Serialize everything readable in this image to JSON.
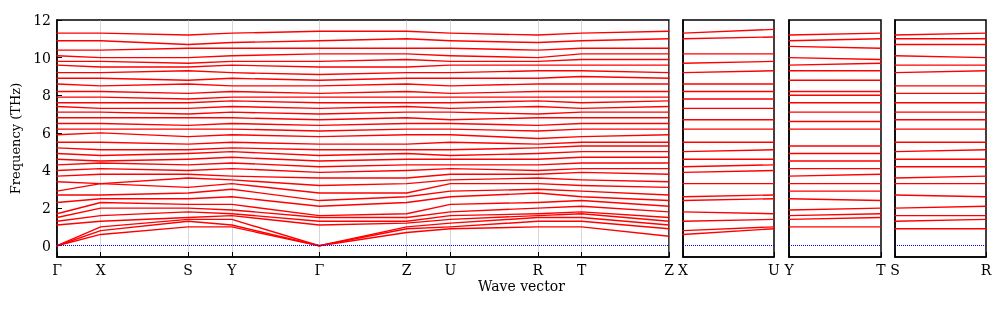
{
  "chart_data": [
    {
      "type": "line",
      "xlabel": "Wave vector",
      "ylabel": "Frequency (THz)",
      "marker": "none",
      "line_style": "solid",
      "grid": "x",
      "categories": [
        "Γ",
        "X",
        null,
        "S",
        "Y",
        null,
        "Γ",
        null,
        "Z",
        "U",
        null,
        "R",
        "T",
        null,
        "Z"
      ],
      "ylim": [
        -0.6,
        12
      ],
      "yticks": [
        0,
        2,
        4,
        6,
        8,
        10,
        12
      ],
      "ref_lines": [
        {
          "axis": "y",
          "value": 0,
          "color": "#0000ff",
          "line_style": "dotted"
        }
      ],
      "series": [
        {
          "color": "#ff0000",
          "values": [
            0,
            0.6,
            null,
            1.0,
            1.0,
            null,
            0,
            null,
            0.7,
            0.9,
            null,
            1.0,
            1.0,
            null,
            0.5
          ]
        },
        {
          "color": "#ff0000",
          "values": [
            0,
            0.8,
            null,
            1.3,
            1.1,
            null,
            0,
            null,
            0.9,
            1.0,
            null,
            1.3,
            1.3,
            null,
            0.9
          ]
        },
        {
          "color": "#ff0000",
          "values": [
            0,
            1.0,
            null,
            1.4,
            1.4,
            null,
            0,
            null,
            1.0,
            1.2,
            null,
            1.5,
            1.5,
            null,
            1.1
          ]
        },
        {
          "color": "#ff0000",
          "values": [
            1.1,
            1.3,
            null,
            1.5,
            1.6,
            null,
            1.1,
            null,
            1.2,
            1.4,
            null,
            1.6,
            1.7,
            null,
            1.3
          ]
        },
        {
          "color": "#ff0000",
          "values": [
            1.3,
            1.6,
            null,
            1.8,
            1.7,
            null,
            1.3,
            null,
            1.3,
            1.6,
            null,
            1.7,
            1.8,
            null,
            1.5
          ]
        },
        {
          "color": "#ff0000",
          "values": [
            1.5,
            2.0,
            null,
            2.0,
            1.9,
            null,
            1.5,
            null,
            1.5,
            1.8,
            null,
            2.0,
            2.1,
            null,
            1.8
          ]
        },
        {
          "color": "#ff0000",
          "values": [
            1.7,
            2.3,
            null,
            2.2,
            2.2,
            null,
            1.6,
            null,
            1.7,
            2.2,
            null,
            2.3,
            2.4,
            null,
            2.1
          ]
        },
        {
          "color": "#ff0000",
          "values": [
            2.3,
            2.5,
            null,
            2.5,
            2.6,
            null,
            2.1,
            null,
            2.3,
            2.6,
            null,
            2.8,
            2.6,
            null,
            2.4
          ]
        },
        {
          "color": "#ff0000",
          "values": [
            2.7,
            2.7,
            null,
            2.8,
            3.0,
            null,
            2.4,
            null,
            2.6,
            2.9,
            null,
            3.0,
            2.9,
            null,
            2.7
          ]
        },
        {
          "color": "#ff0000",
          "values": [
            2.9,
            3.3,
            null,
            3.1,
            3.3,
            null,
            2.8,
            null,
            2.8,
            3.3,
            null,
            3.3,
            3.2,
            null,
            3.1
          ]
        },
        {
          "color": "#ff0000",
          "values": [
            3.4,
            3.3,
            null,
            3.6,
            3.5,
            null,
            3.2,
            null,
            3.3,
            3.5,
            null,
            3.6,
            3.5,
            null,
            3.4
          ]
        },
        {
          "color": "#ff0000",
          "values": [
            3.7,
            3.8,
            null,
            3.8,
            3.7,
            null,
            3.6,
            null,
            3.6,
            3.8,
            null,
            3.8,
            3.9,
            null,
            3.8
          ]
        },
        {
          "color": "#ff0000",
          "values": [
            4.0,
            4.1,
            null,
            4.0,
            4.1,
            null,
            3.9,
            null,
            4.0,
            4.1,
            null,
            4.0,
            4.1,
            null,
            4.1
          ]
        },
        {
          "color": "#ff0000",
          "values": [
            4.3,
            4.4,
            null,
            4.3,
            4.4,
            null,
            4.2,
            null,
            4.3,
            4.3,
            null,
            4.3,
            4.4,
            null,
            4.4
          ]
        },
        {
          "color": "#ff0000",
          "values": [
            4.6,
            4.5,
            null,
            4.6,
            4.7,
            null,
            4.5,
            null,
            4.6,
            4.6,
            null,
            4.6,
            4.7,
            null,
            4.7
          ]
        },
        {
          "color": "#ff0000",
          "values": [
            4.9,
            4.8,
            null,
            4.9,
            5.0,
            null,
            4.8,
            null,
            4.9,
            4.8,
            null,
            4.9,
            5.0,
            null,
            5.0
          ]
        },
        {
          "color": "#ff0000",
          "values": [
            5.2,
            5.1,
            null,
            5.1,
            5.2,
            null,
            5.1,
            null,
            5.1,
            5.1,
            null,
            5.2,
            5.3,
            null,
            5.3
          ]
        },
        {
          "color": "#ff0000",
          "values": [
            5.5,
            5.5,
            null,
            5.4,
            5.5,
            null,
            5.4,
            null,
            5.4,
            5.5,
            null,
            5.4,
            5.5,
            null,
            5.5
          ]
        },
        {
          "color": "#ff0000",
          "values": [
            5.9,
            6.0,
            null,
            5.8,
            5.9,
            null,
            5.8,
            null,
            5.9,
            5.9,
            null,
            5.7,
            5.8,
            null,
            5.9
          ]
        },
        {
          "color": "#ff0000",
          "values": [
            6.2,
            6.2,
            null,
            6.2,
            6.2,
            null,
            6.1,
            null,
            6.2,
            6.2,
            null,
            6.1,
            6.2,
            null,
            6.2
          ]
        },
        {
          "color": "#ff0000",
          "values": [
            6.5,
            6.5,
            null,
            6.4,
            6.5,
            null,
            6.4,
            null,
            6.5,
            6.5,
            null,
            6.4,
            6.5,
            null,
            6.5
          ]
        },
        {
          "color": "#ff0000",
          "values": [
            6.8,
            6.8,
            null,
            6.8,
            6.8,
            null,
            6.7,
            null,
            6.8,
            6.7,
            null,
            6.8,
            6.8,
            null,
            6.8
          ]
        },
        {
          "color": "#ff0000",
          "values": [
            7.1,
            7.1,
            null,
            7.0,
            7.1,
            null,
            7.0,
            null,
            7.1,
            7.1,
            null,
            7.0,
            7.1,
            null,
            7.1
          ]
        },
        {
          "color": "#ff0000",
          "values": [
            7.4,
            7.3,
            null,
            7.3,
            7.4,
            null,
            7.3,
            null,
            7.4,
            7.3,
            null,
            7.4,
            7.3,
            null,
            7.4
          ]
        },
        {
          "color": "#ff0000",
          "values": [
            7.6,
            7.6,
            null,
            7.6,
            7.7,
            null,
            7.6,
            null,
            7.6,
            7.6,
            null,
            7.7,
            7.6,
            null,
            7.7
          ]
        },
        {
          "color": "#ff0000",
          "values": [
            7.9,
            7.9,
            null,
            7.8,
            7.9,
            null,
            7.9,
            null,
            7.9,
            7.9,
            null,
            7.9,
            7.9,
            null,
            7.9
          ]
        },
        {
          "color": "#ff0000",
          "values": [
            8.2,
            8.2,
            null,
            8.1,
            8.2,
            null,
            8.1,
            null,
            8.2,
            8.1,
            null,
            8.2,
            8.2,
            null,
            8.2
          ]
        },
        {
          "color": "#ff0000",
          "values": [
            8.6,
            8.5,
            null,
            8.6,
            8.5,
            null,
            8.5,
            null,
            8.6,
            8.5,
            null,
            8.6,
            8.6,
            null,
            8.6
          ]
        },
        {
          "color": "#ff0000",
          "values": [
            8.9,
            8.9,
            null,
            8.8,
            8.9,
            null,
            8.8,
            null,
            8.9,
            8.9,
            null,
            8.9,
            9.0,
            null,
            8.9
          ]
        },
        {
          "color": "#ff0000",
          "values": [
            9.2,
            9.2,
            null,
            9.3,
            9.2,
            null,
            9.1,
            null,
            9.2,
            9.2,
            null,
            9.3,
            9.3,
            null,
            9.2
          ]
        },
        {
          "color": "#ff0000",
          "values": [
            9.6,
            9.5,
            null,
            9.5,
            9.6,
            null,
            9.5,
            null,
            9.5,
            9.6,
            null,
            9.6,
            9.6,
            null,
            9.6
          ]
        },
        {
          "color": "#ff0000",
          "values": [
            9.8,
            9.8,
            null,
            9.7,
            9.8,
            null,
            9.8,
            null,
            9.9,
            9.8,
            null,
            9.8,
            9.9,
            null,
            9.9
          ]
        },
        {
          "color": "#ff0000",
          "values": [
            10.1,
            10.0,
            null,
            10.0,
            10.1,
            null,
            10.2,
            null,
            10.2,
            10.1,
            null,
            10.0,
            10.2,
            null,
            10.2
          ]
        },
        {
          "color": "#ff0000",
          "values": [
            10.4,
            10.4,
            null,
            10.5,
            10.5,
            null,
            10.5,
            null,
            10.5,
            10.5,
            null,
            10.4,
            10.5,
            null,
            10.5
          ]
        },
        {
          "color": "#ff0000",
          "values": [
            10.9,
            10.9,
            null,
            10.7,
            10.8,
            null,
            10.9,
            null,
            11.0,
            10.9,
            null,
            10.8,
            10.9,
            null,
            11.0
          ]
        },
        {
          "color": "#ff0000",
          "values": [
            11.3,
            11.3,
            null,
            11.2,
            11.3,
            null,
            11.4,
            null,
            11.4,
            11.3,
            null,
            11.2,
            11.3,
            null,
            11.4
          ]
        }
      ]
    },
    {
      "type": "line",
      "marker": "none",
      "line_style": "solid",
      "tick_labels": "x",
      "categories": [
        "X",
        "U"
      ],
      "ylim": [
        -0.6,
        12
      ],
      "ref_lines": [
        {
          "axis": "y",
          "value": 0,
          "color": "#0000ff",
          "line_style": "dotted"
        }
      ],
      "series": [
        {
          "color": "#ff0000",
          "values": [
            0.6,
            0.9
          ]
        },
        {
          "color": "#ff0000",
          "values": [
            0.8,
            1.0
          ]
        },
        {
          "color": "#ff0000",
          "values": [
            1.3,
            1.4
          ]
        },
        {
          "color": "#ff0000",
          "values": [
            1.8,
            1.7
          ]
        },
        {
          "color": "#ff0000",
          "values": [
            2.4,
            2.5
          ]
        },
        {
          "color": "#ff0000",
          "values": [
            2.6,
            2.7
          ]
        },
        {
          "color": "#ff0000",
          "values": [
            3.3,
            3.3
          ]
        },
        {
          "color": "#ff0000",
          "values": [
            3.9,
            4.0
          ]
        },
        {
          "color": "#ff0000",
          "values": [
            4.2,
            4.3
          ]
        },
        {
          "color": "#ff0000",
          "values": [
            4.6,
            4.6
          ]
        },
        {
          "color": "#ff0000",
          "values": [
            5.0,
            5.1
          ]
        },
        {
          "color": "#ff0000",
          "values": [
            5.5,
            5.5
          ]
        },
        {
          "color": "#ff0000",
          "values": [
            6.2,
            6.2
          ]
        },
        {
          "color": "#ff0000",
          "values": [
            6.7,
            6.7
          ]
        },
        {
          "color": "#ff0000",
          "values": [
            7.3,
            7.3
          ]
        },
        {
          "color": "#ff0000",
          "values": [
            7.8,
            7.8
          ]
        },
        {
          "color": "#ff0000",
          "values": [
            8.2,
            8.2
          ]
        },
        {
          "color": "#ff0000",
          "values": [
            8.6,
            8.6
          ]
        },
        {
          "color": "#ff0000",
          "values": [
            9.2,
            9.3
          ]
        },
        {
          "color": "#ff0000",
          "values": [
            9.7,
            9.8
          ]
        },
        {
          "color": "#ff0000",
          "values": [
            10.2,
            10.2
          ]
        },
        {
          "color": "#ff0000",
          "values": [
            11.0,
            11.1
          ]
        },
        {
          "color": "#ff0000",
          "values": [
            11.3,
            11.5
          ]
        }
      ]
    },
    {
      "type": "line",
      "marker": "none",
      "line_style": "solid",
      "tick_labels": "x",
      "categories": [
        "Y",
        "T"
      ],
      "ylim": [
        -0.6,
        12
      ],
      "ref_lines": [
        {
          "axis": "y",
          "value": 0,
          "color": "#0000ff",
          "line_style": "dotted"
        }
      ],
      "series": [
        {
          "color": "#ff0000",
          "values": [
            1.0,
            1.0
          ]
        },
        {
          "color": "#ff0000",
          "values": [
            1.4,
            1.5
          ]
        },
        {
          "color": "#ff0000",
          "values": [
            1.6,
            1.7
          ]
        },
        {
          "color": "#ff0000",
          "values": [
            1.9,
            2.0
          ]
        },
        {
          "color": "#ff0000",
          "values": [
            2.5,
            2.4
          ]
        },
        {
          "color": "#ff0000",
          "values": [
            2.9,
            2.9
          ]
        },
        {
          "color": "#ff0000",
          "values": [
            3.3,
            3.3
          ]
        },
        {
          "color": "#ff0000",
          "values": [
            3.7,
            3.8
          ]
        },
        {
          "color": "#ff0000",
          "values": [
            4.1,
            4.1
          ]
        },
        {
          "color": "#ff0000",
          "values": [
            4.5,
            4.5
          ]
        },
        {
          "color": "#ff0000",
          "values": [
            4.9,
            4.9
          ]
        },
        {
          "color": "#ff0000",
          "values": [
            5.3,
            5.3
          ]
        },
        {
          "color": "#ff0000",
          "values": [
            6.2,
            6.2
          ]
        },
        {
          "color": "#ff0000",
          "values": [
            6.6,
            6.6
          ]
        },
        {
          "color": "#ff0000",
          "values": [
            7.1,
            7.1
          ]
        },
        {
          "color": "#ff0000",
          "values": [
            7.6,
            7.6
          ]
        },
        {
          "color": "#ff0000",
          "values": [
            8.0,
            8.0
          ]
        },
        {
          "color": "#ff0000",
          "values": [
            8.2,
            8.2
          ]
        },
        {
          "color": "#ff0000",
          "values": [
            8.8,
            8.8
          ]
        },
        {
          "color": "#ff0000",
          "values": [
            9.3,
            9.3
          ]
        },
        {
          "color": "#ff0000",
          "values": [
            9.6,
            9.7
          ]
        },
        {
          "color": "#ff0000",
          "values": [
            10.0,
            9.9
          ]
        },
        {
          "color": "#ff0000",
          "values": [
            10.6,
            10.5
          ]
        },
        {
          "color": "#ff0000",
          "values": [
            10.9,
            11.0
          ]
        },
        {
          "color": "#ff0000",
          "values": [
            11.2,
            11.3
          ]
        }
      ]
    },
    {
      "type": "line",
      "marker": "none",
      "line_style": "solid",
      "tick_labels": "x",
      "categories": [
        "S",
        "R"
      ],
      "ylim": [
        -0.6,
        12
      ],
      "ref_lines": [
        {
          "axis": "y",
          "value": 0,
          "color": "#0000ff",
          "line_style": "dotted"
        }
      ],
      "series": [
        {
          "color": "#ff0000",
          "values": [
            0.9,
            0.9
          ]
        },
        {
          "color": "#ff0000",
          "values": [
            1.3,
            1.4
          ]
        },
        {
          "color": "#ff0000",
          "values": [
            1.6,
            1.6
          ]
        },
        {
          "color": "#ff0000",
          "values": [
            2.0,
            2.1
          ]
        },
        {
          "color": "#ff0000",
          "values": [
            2.7,
            2.6
          ]
        },
        {
          "color": "#ff0000",
          "values": [
            3.3,
            3.3
          ]
        },
        {
          "color": "#ff0000",
          "values": [
            3.6,
            3.7
          ]
        },
        {
          "color": "#ff0000",
          "values": [
            4.2,
            4.2
          ]
        },
        {
          "color": "#ff0000",
          "values": [
            4.6,
            4.6
          ]
        },
        {
          "color": "#ff0000",
          "values": [
            5.0,
            5.1
          ]
        },
        {
          "color": "#ff0000",
          "values": [
            5.5,
            5.5
          ]
        },
        {
          "color": "#ff0000",
          "values": [
            6.2,
            6.2
          ]
        },
        {
          "color": "#ff0000",
          "values": [
            6.7,
            6.7
          ]
        },
        {
          "color": "#ff0000",
          "values": [
            7.1,
            7.1
          ]
        },
        {
          "color": "#ff0000",
          "values": [
            7.6,
            7.6
          ]
        },
        {
          "color": "#ff0000",
          "values": [
            8.1,
            8.1
          ]
        },
        {
          "color": "#ff0000",
          "values": [
            8.5,
            8.5
          ]
        },
        {
          "color": "#ff0000",
          "values": [
            9.2,
            9.3
          ]
        },
        {
          "color": "#ff0000",
          "values": [
            9.6,
            9.6
          ]
        },
        {
          "color": "#ff0000",
          "values": [
            10.1,
            10.0
          ]
        },
        {
          "color": "#ff0000",
          "values": [
            10.7,
            10.7
          ]
        },
        {
          "color": "#ff0000",
          "values": [
            11.0,
            11.0
          ]
        },
        {
          "color": "#ff0000",
          "values": [
            11.2,
            11.3
          ]
        }
      ]
    }
  ]
}
